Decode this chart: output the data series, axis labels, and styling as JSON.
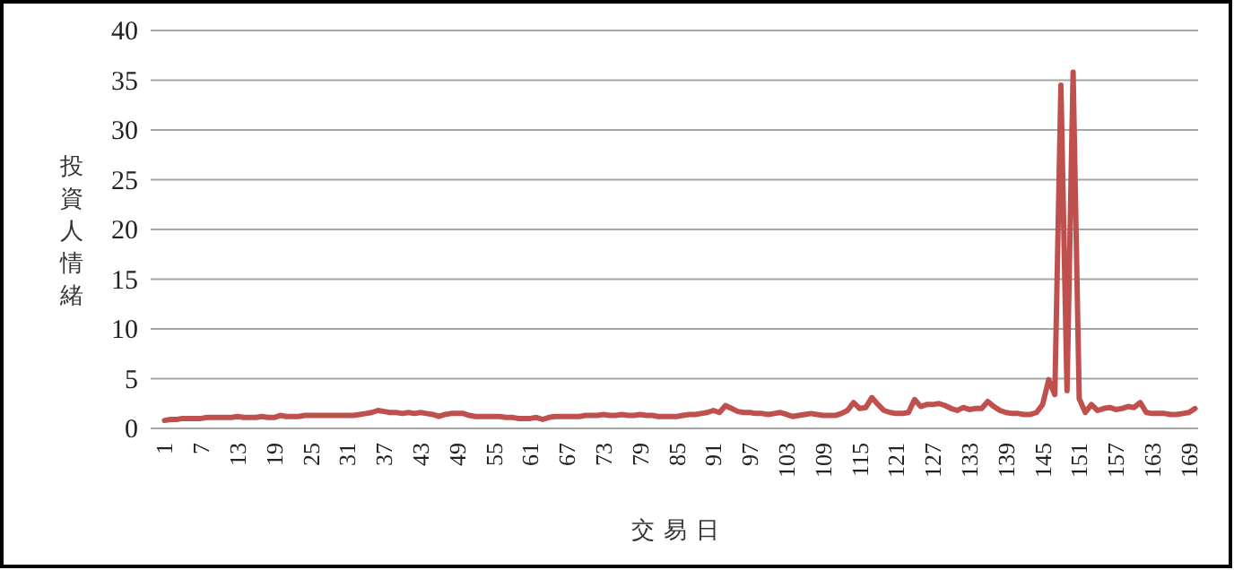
{
  "chart_data": {
    "type": "line",
    "xlabel": "交易日",
    "ylabel": "投資人情緒",
    "categories": [
      "1",
      null,
      null,
      null,
      null,
      null,
      "7",
      null,
      null,
      null,
      null,
      null,
      "13",
      null,
      null,
      null,
      null,
      null,
      "19",
      null,
      null,
      null,
      null,
      null,
      "25",
      null,
      null,
      null,
      null,
      null,
      "31",
      null,
      null,
      null,
      null,
      null,
      "37",
      null,
      null,
      null,
      null,
      null,
      "43",
      null,
      null,
      null,
      null,
      null,
      "49",
      null,
      null,
      null,
      null,
      null,
      "55",
      null,
      null,
      null,
      null,
      null,
      "61",
      null,
      null,
      null,
      null,
      null,
      "67",
      null,
      null,
      null,
      null,
      null,
      "73",
      null,
      null,
      null,
      null,
      null,
      "79",
      null,
      null,
      null,
      null,
      null,
      "85",
      null,
      null,
      null,
      null,
      null,
      "91",
      null,
      null,
      null,
      null,
      null,
      "97",
      null,
      null,
      null,
      null,
      null,
      "103",
      null,
      null,
      null,
      null,
      null,
      "109",
      null,
      null,
      null,
      null,
      null,
      "115",
      null,
      null,
      null,
      null,
      null,
      "121",
      null,
      null,
      null,
      null,
      null,
      "127",
      null,
      null,
      null,
      null,
      null,
      "133",
      null,
      null,
      null,
      null,
      null,
      "139",
      null,
      null,
      null,
      null,
      null,
      "145",
      null,
      null,
      null,
      null,
      null,
      "151",
      null,
      null,
      null,
      null,
      null,
      "157",
      null,
      null,
      null,
      null,
      null,
      "163",
      null,
      null,
      null,
      null,
      null,
      "169",
      null
    ],
    "values": [
      0.8,
      0.9,
      0.9,
      1.0,
      1.0,
      1.0,
      1.0,
      1.1,
      1.1,
      1.1,
      1.1,
      1.1,
      1.2,
      1.1,
      1.1,
      1.1,
      1.2,
      1.1,
      1.1,
      1.3,
      1.2,
      1.2,
      1.2,
      1.3,
      1.3,
      1.3,
      1.3,
      1.3,
      1.3,
      1.3,
      1.3,
      1.3,
      1.4,
      1.5,
      1.6,
      1.8,
      1.7,
      1.6,
      1.6,
      1.5,
      1.6,
      1.5,
      1.6,
      1.5,
      1.4,
      1.2,
      1.4,
      1.5,
      1.5,
      1.5,
      1.3,
      1.2,
      1.2,
      1.2,
      1.2,
      1.2,
      1.1,
      1.1,
      1.0,
      1.0,
      1.0,
      1.1,
      0.9,
      1.1,
      1.2,
      1.2,
      1.2,
      1.2,
      1.2,
      1.3,
      1.3,
      1.3,
      1.4,
      1.3,
      1.3,
      1.4,
      1.3,
      1.3,
      1.4,
      1.3,
      1.3,
      1.2,
      1.2,
      1.2,
      1.2,
      1.3,
      1.4,
      1.4,
      1.5,
      1.6,
      1.8,
      1.6,
      2.3,
      2.0,
      1.7,
      1.6,
      1.6,
      1.5,
      1.5,
      1.4,
      1.5,
      1.6,
      1.4,
      1.2,
      1.3,
      1.4,
      1.5,
      1.4,
      1.3,
      1.3,
      1.3,
      1.5,
      1.8,
      2.6,
      2.0,
      2.1,
      3.1,
      2.4,
      1.8,
      1.6,
      1.5,
      1.5,
      1.6,
      2.9,
      2.2,
      2.4,
      2.4,
      2.5,
      2.3,
      2.0,
      1.8,
      2.1,
      1.9,
      2.0,
      2.0,
      2.7,
      2.2,
      1.8,
      1.6,
      1.5,
      1.5,
      1.4,
      1.4,
      1.6,
      2.4,
      4.9,
      3.4,
      34.5,
      3.8,
      35.8,
      3.0,
      1.6,
      2.4,
      1.8,
      2.0,
      2.1,
      1.9,
      2.0,
      2.2,
      2.1,
      2.6,
      1.6,
      1.5,
      1.5,
      1.5,
      1.4,
      1.4,
      1.5,
      1.6,
      2.0
    ],
    "color": "#c0504d",
    "ylim": [
      0,
      40
    ],
    "yticks": [
      0,
      5,
      10,
      15,
      20,
      25,
      30,
      35,
      40
    ],
    "grid": "y"
  }
}
